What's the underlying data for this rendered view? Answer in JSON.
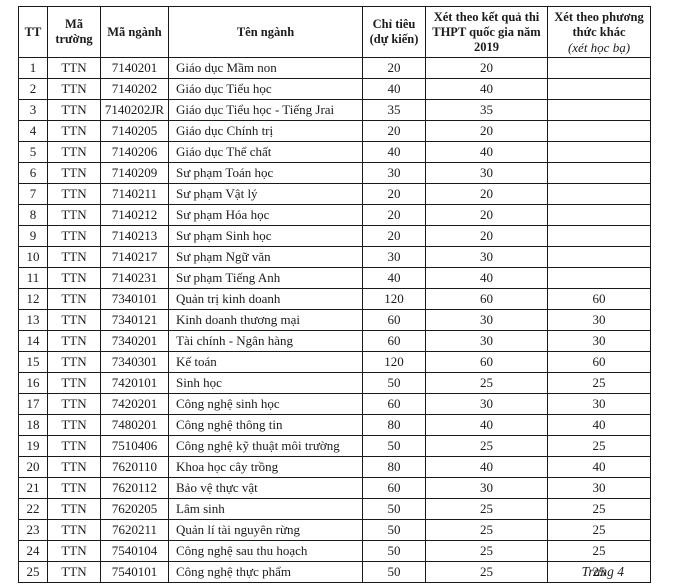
{
  "header": {
    "tt": "TT",
    "school_code": "Mã trường",
    "major_code": "Mã ngành",
    "major_name": "Tên ngành",
    "quota_line1": "Chỉ tiêu",
    "quota_line2": "(dự kiến)",
    "thpt": "Xét theo kết quả thi THPT quốc gia năm 2019",
    "other_line1": "Xét theo phương thức khác",
    "other_line2": "(xét học bạ)"
  },
  "rows": [
    [
      "1",
      "TTN",
      "7140201",
      "Giáo dục Mầm non",
      "20",
      "20",
      ""
    ],
    [
      "2",
      "TTN",
      "7140202",
      "Giáo dục Tiểu học",
      "40",
      "40",
      ""
    ],
    [
      "3",
      "TTN",
      "7140202JR",
      "Giáo dục Tiểu học - Tiếng Jrai",
      "35",
      "35",
      ""
    ],
    [
      "4",
      "TTN",
      "7140205",
      "Giáo dục Chính trị",
      "20",
      "20",
      ""
    ],
    [
      "5",
      "TTN",
      "7140206",
      "Giáo dục Thể chất",
      "40",
      "40",
      ""
    ],
    [
      "6",
      "TTN",
      "7140209",
      "Sư phạm Toán học",
      "30",
      "30",
      ""
    ],
    [
      "7",
      "TTN",
      "7140211",
      "Sư phạm Vật lý",
      "20",
      "20",
      ""
    ],
    [
      "8",
      "TTN",
      "7140212",
      "Sư phạm Hóa học",
      "20",
      "20",
      ""
    ],
    [
      "9",
      "TTN",
      "7140213",
      "Sư phạm Sinh học",
      "20",
      "20",
      ""
    ],
    [
      "10",
      "TTN",
      "7140217",
      "Sư phạm Ngữ văn",
      "30",
      "30",
      ""
    ],
    [
      "11",
      "TTN",
      "7140231",
      "Sư phạm Tiếng Anh",
      "40",
      "40",
      ""
    ],
    [
      "12",
      "TTN",
      "7340101",
      "Quản trị kinh doanh",
      "120",
      "60",
      "60"
    ],
    [
      "13",
      "TTN",
      "7340121",
      "Kinh doanh thương mại",
      "60",
      "30",
      "30"
    ],
    [
      "14",
      "TTN",
      "7340201",
      "Tài chính - Ngân hàng",
      "60",
      "30",
      "30"
    ],
    [
      "15",
      "TTN",
      "7340301",
      "Kế toán",
      "120",
      "60",
      "60"
    ],
    [
      "16",
      "TTN",
      "7420101",
      "Sinh học",
      "50",
      "25",
      "25"
    ],
    [
      "17",
      "TTN",
      "7420201",
      "Công nghệ sinh học",
      "60",
      "30",
      "30"
    ],
    [
      "18",
      "TTN",
      "7480201",
      "Công nghệ thông tin",
      "80",
      "40",
      "40"
    ],
    [
      "19",
      "TTN",
      "7510406",
      "Công nghệ kỹ thuật môi trường",
      "50",
      "25",
      "25"
    ],
    [
      "20",
      "TTN",
      "7620110",
      "Khoa học cây trồng",
      "80",
      "40",
      "40"
    ],
    [
      "21",
      "TTN",
      "7620112",
      "Bảo vệ thực vật",
      "60",
      "30",
      "30"
    ],
    [
      "22",
      "TTN",
      "7620205",
      "Lâm sinh",
      "50",
      "25",
      "25"
    ],
    [
      "23",
      "TTN",
      "7620211",
      "Quản lí tài nguyên rừng",
      "50",
      "25",
      "25"
    ],
    [
      "24",
      "TTN",
      "7540104",
      "Công nghệ sau thu hoạch",
      "50",
      "25",
      "25"
    ],
    [
      "25",
      "TTN",
      "7540101",
      "Công nghệ thực phẩm",
      "50",
      "25",
      "25"
    ]
  ],
  "footer": {
    "page_label": "Trang 4"
  }
}
